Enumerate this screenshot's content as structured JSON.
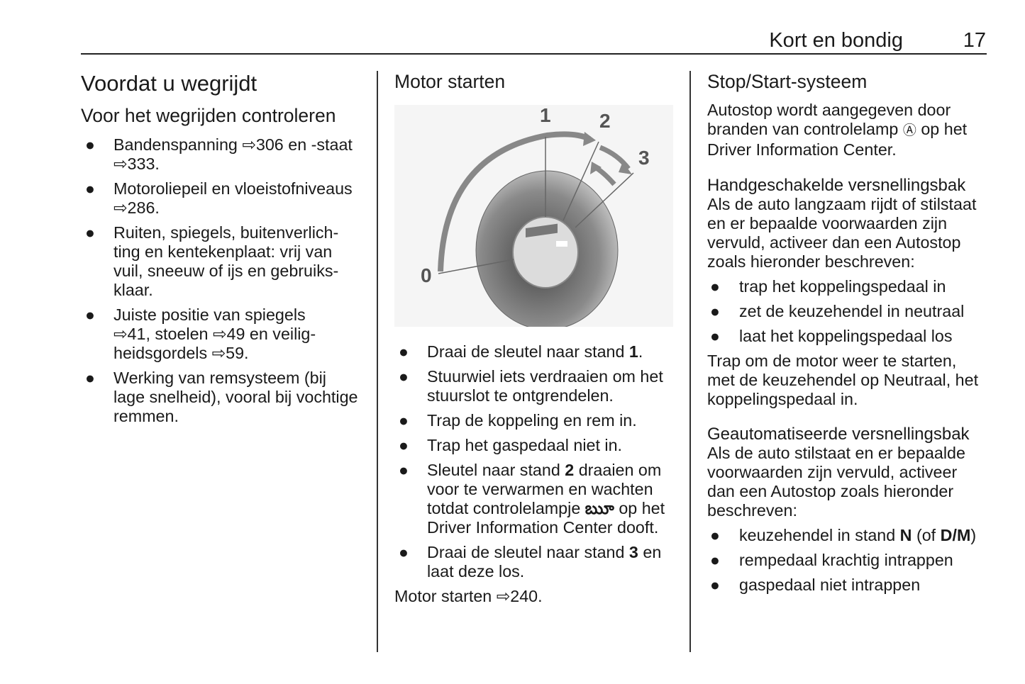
{
  "header": {
    "section": "Kort en bondig",
    "page": "17"
  },
  "col1": {
    "title": "Voordat u wegrijdt",
    "subtitle": "Voor het wegrijden controleren",
    "items": [
      [
        "Bandenspanning ",
        "306 en -staat\n",
        "333."
      ],
      [
        "Motoroliepeil en vloeistofniveaus\n",
        "286."
      ],
      [
        "Ruiten, spiegels, buitenverlich-\nting en kentekenplaat: vrij van\nvuil, sneeuw of ijs en gebruiks-\nklaar."
      ],
      [
        "Juiste positie van spiegels\n",
        "41, stoelen ",
        "49 en veilig-\nheidsgordels ",
        "59."
      ],
      [
        "Werking van remsysteem (bij\nlage snelheid), vooral bij vochtige\nremmen."
      ]
    ]
  },
  "col2": {
    "title": "Motor starten",
    "figure_labels": [
      "0",
      "1",
      "2",
      "3"
    ],
    "items": [
      {
        "a": "Draai de sleutel naar stand ",
        "b": "1",
        "c": "."
      },
      {
        "a": "Stuurwiel iets verdraaien om het\nstuurslot te ontgrendelen."
      },
      {
        "a": "Trap de koppeling en rem in."
      },
      {
        "a": "Trap het gaspedaal niet in."
      },
      {
        "a": "Sleutel naar stand ",
        "b": "2",
        "c": " draaien om\nvoor te verwarmen en wachten\ntotdat controlelampje ",
        "icon": "ౠ",
        "d": " op het\nDriver Information Center dooft."
      },
      {
        "a": "Draai de sleutel naar stand ",
        "b": "3",
        "c": " en\nlaat deze los."
      }
    ],
    "footer_text": "Motor starten ",
    "footer_ref": "240."
  },
  "col3": {
    "title": "Stop/Start-systeem",
    "intro_a": "Autostop wordt aangegeven door\nbranden van controlelamp ",
    "intro_icon": "Ⓐ",
    "intro_b": " op het\nDriver Information Center.",
    "manual_title": "Handgeschakelde versnellingsbak",
    "manual_text": "Als de auto langzaam rijdt of stilstaat\nen er bepaalde voorwaarden zijn\nvervuld, activeer dan een Autostop\nzoals hieronder beschreven:",
    "manual_items": [
      "trap het koppelingspedaal in",
      "zet de keuzehendel in neutraal",
      "laat het koppelingspedaal los"
    ],
    "manual_after": "Trap om de motor weer te starten,\nmet de keuzehendel op Neutraal, het\nkoppelingspedaal in.",
    "auto_title": "Geautomatiseerde versnellingsbak",
    "auto_text": "Als de auto stilstaat en er bepaalde\nvoorwaarden zijn vervuld, activeer\ndan een Autostop zoals hieronder\nbeschreven:",
    "auto_items": [
      {
        "a": "keuzehendel in stand ",
        "b": "N",
        "c": " (of ",
        "d": "D/M",
        "e": ")"
      },
      {
        "a": "rempedaal krachtig intrappen"
      },
      {
        "a": "gaspedaal niet intrappen"
      }
    ]
  },
  "icons": {
    "bullet": "●",
    "ref_arrow": "⇨"
  }
}
